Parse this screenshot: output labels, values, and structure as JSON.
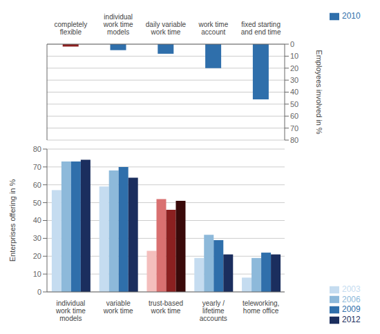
{
  "chart_data": [
    {
      "type": "bar",
      "categories": [
        "completely\nflexible",
        "individual\nwork time\nmodels",
        "daily variable\nwork time",
        "work time\naccount",
        "fixed starting\nand end time"
      ],
      "series": [
        {
          "name": "2010",
          "color": "#2F6FAB",
          "colors": [
            "#8B2020",
            "#2F6FAB",
            "#2F6FAB",
            "#2F6FAB",
            "#2F6FAB"
          ],
          "values": [
            2,
            5,
            8,
            20,
            46
          ],
          "axis": "y2"
        }
      ],
      "y2label": "Employees involved in %",
      "y2lim": [
        80,
        0
      ],
      "y2ticks": [
        0,
        10,
        20,
        30,
        40,
        50,
        60,
        70,
        80
      ],
      "grid": true,
      "legend": "upper right"
    },
    {
      "type": "bar",
      "categories": [
        "individual\nwork time\nmodels",
        "variable\nwork time",
        "trust-based\nwork time",
        "yearly /\nlifetime\naccounts",
        "teleworking,\nhome office"
      ],
      "series": [
        {
          "name": "2003",
          "color": "#C5DCF0",
          "colors": [
            "#C5DCF0",
            "#C5DCF0",
            "#F4BEBC",
            "#C5DCF0",
            "#C5DCF0"
          ],
          "values": [
            57,
            59,
            23,
            19,
            8
          ]
        },
        {
          "name": "2006",
          "color": "#8DB9DA",
          "colors": [
            "#8DB9DA",
            "#8DB9DA",
            "#D97070",
            "#8DB9DA",
            "#8DB9DA"
          ],
          "values": [
            73,
            68,
            52,
            32,
            19
          ]
        },
        {
          "name": "2009",
          "color": "#2F6FAB",
          "colors": [
            "#2F6FAB",
            "#2F6FAB",
            "#8B2020",
            "#2F6FAB",
            "#2F6FAB"
          ],
          "values": [
            73,
            70,
            46,
            29,
            22
          ]
        },
        {
          "name": "2012",
          "color": "#1B2E5E",
          "colors": [
            "#1B2E5E",
            "#1B2E5E",
            "#3A0A0A",
            "#1B2E5E",
            "#1B2E5E"
          ],
          "values": [
            74,
            64,
            51,
            21,
            21
          ]
        }
      ],
      "ylabel": "Enterprises offering in %",
      "ylim": [
        0,
        80
      ],
      "yticks": [
        0,
        10,
        20,
        30,
        40,
        50,
        60,
        70,
        80
      ],
      "grid": true,
      "legend": "lower right"
    }
  ]
}
